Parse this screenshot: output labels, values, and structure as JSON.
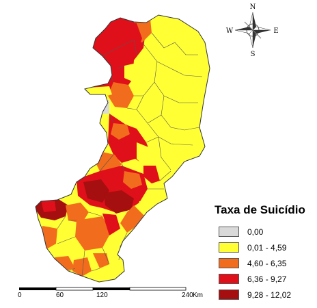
{
  "legend": {
    "title": "Taxa de Suicídio",
    "items": [
      {
        "label": "0,00",
        "color": "#d9d9d9"
      },
      {
        "label": "0,01 - 4,59",
        "color": "#ffff33"
      },
      {
        "label": "4,60 - 6,35",
        "color": "#f26c1d"
      },
      {
        "label": "6,36 - 9,27",
        "color": "#e0101a"
      },
      {
        "label": "9,28 - 12,02",
        "color": "#a50f0f"
      }
    ]
  },
  "scale": {
    "ticks": [
      "0",
      "60",
      "120",
      "240"
    ],
    "unit": "Km"
  },
  "compass": {
    "n": "N",
    "s": "S",
    "e": "E",
    "w": "W"
  }
}
